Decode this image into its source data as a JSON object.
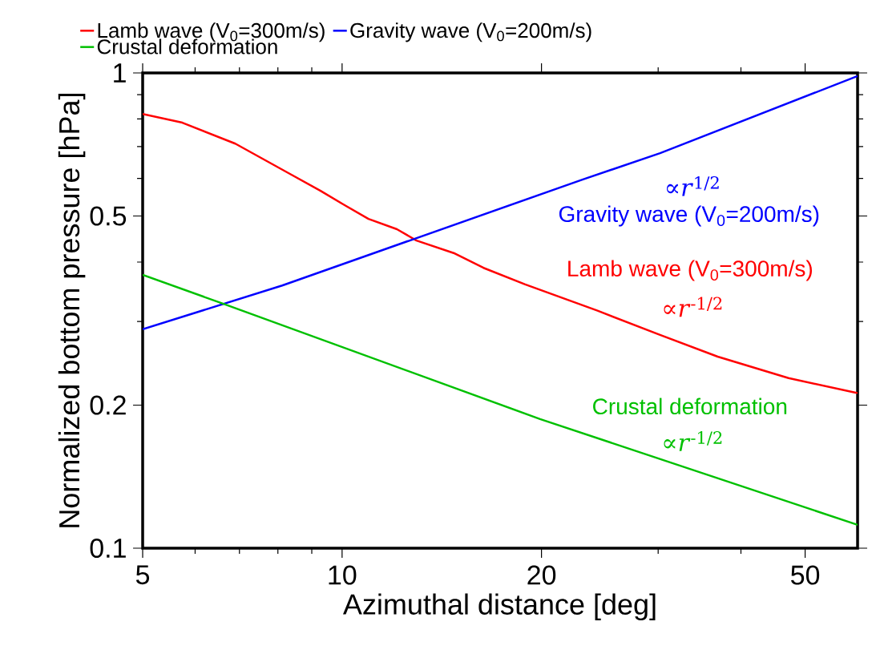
{
  "chart_data": {
    "type": "line",
    "xlabel": "Azimuthal distance [deg]",
    "ylabel": "Normalized bottom pressure [hPa]",
    "log": "xy",
    "grid": false,
    "legend": "top",
    "marker": "none",
    "line_style": "solid",
    "xlim": [
      5,
      60
    ],
    "ylim": [
      0.1,
      1
    ],
    "xticks": [
      5,
      {
        "value": 6,
        "label": null
      },
      {
        "value": 7,
        "label": null
      },
      {
        "value": 8,
        "label": null
      },
      {
        "value": 9,
        "label": null
      },
      10,
      20,
      {
        "value": 30,
        "label": null
      },
      {
        "value": 40,
        "label": null
      },
      50
    ],
    "yticks": [
      0.1,
      0.2,
      {
        "value": 0.3,
        "label": null
      },
      {
        "value": 0.4,
        "label": null
      },
      0.5,
      {
        "value": 0.6,
        "label": null
      },
      {
        "value": 0.7,
        "label": null
      },
      {
        "value": 0.8,
        "label": null
      },
      {
        "value": 0.9,
        "label": null
      },
      1
    ],
    "series": [
      {
        "name": "Lamb wave (V$_{0}$=300m/s)",
        "color": "#ff0000",
        "x": [
          5,
          5.74,
          6.9,
          8.26,
          9.28,
          10.09,
          10.96,
          12.1,
          12.95,
          14.8,
          16.35,
          18.9,
          24.3,
          30.2,
          36.9,
          47.2,
          60
        ],
        "values": [
          0.82,
          0.786,
          0.71,
          0.618,
          0.565,
          0.527,
          0.493,
          0.469,
          0.444,
          0.417,
          0.389,
          0.359,
          0.316,
          0.281,
          0.253,
          0.228,
          0.212
        ]
      },
      {
        "name": "Gravity wave (V$_{0}$=200m/s)",
        "color": "#0000ff",
        "x": [
          5,
          8.12,
          12.53,
          23.1,
          30.2,
          60
        ],
        "values": [
          0.289,
          0.357,
          0.442,
          0.597,
          0.678,
          0.985
        ]
      },
      {
        "name": "Crustal deformation",
        "color": "#00c000",
        "x": [
          5,
          6.61,
          19.9,
          60
        ],
        "values": [
          0.376,
          0.327,
          0.187,
          0.112
        ]
      }
    ],
    "annotations": [
      "∝*r*$^{1/2}$",
      "Gravity wave (V$_{0}$=200m/s)",
      "Lamb wave (V$_{0}$=300m/s)",
      "∝*r*$^{-1/2}$",
      "Crustal deformation",
      "∝*r*$^{-1/2}$"
    ]
  }
}
